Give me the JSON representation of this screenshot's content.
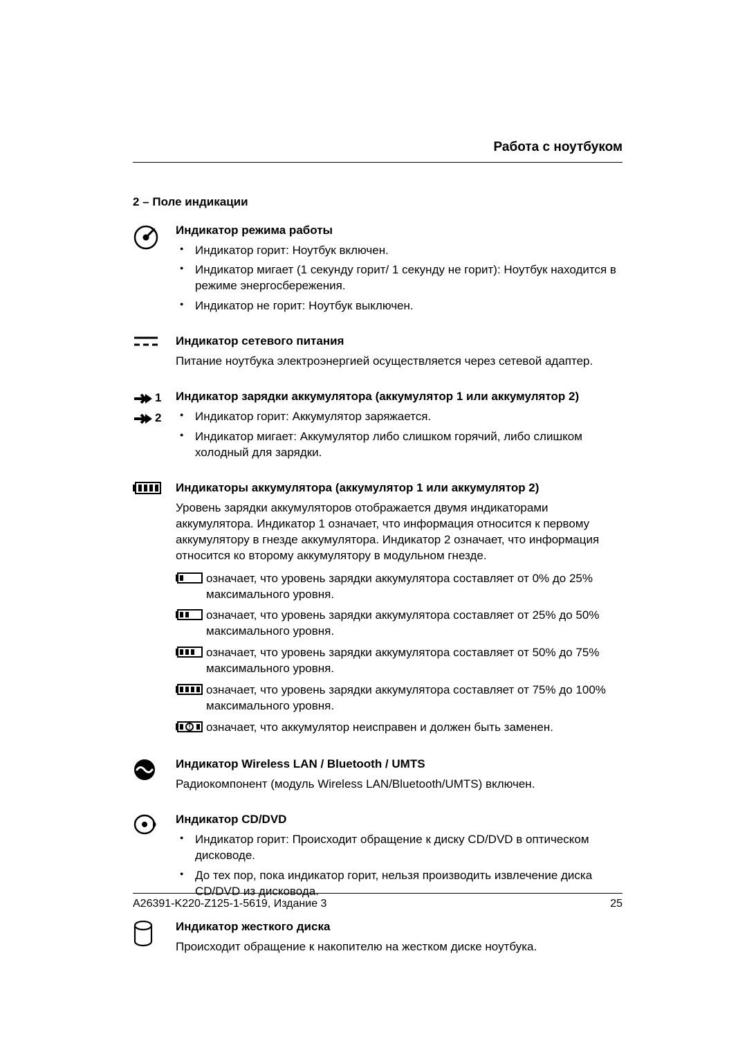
{
  "header": {
    "title": "Работа с ноутбуком"
  },
  "section_title": "2 – Поле индикации",
  "power_mode": {
    "heading": "Индикатор режима работы",
    "bullets": [
      "Индикатор горит: Ноутбук включен.",
      "Индикатор мигает (1 секунду горит/ 1 секунду не горит): Ноутбук находится в режиме энергосбережения.",
      "Индикатор не горит: Ноутбук выключен."
    ]
  },
  "mains": {
    "heading": "Индикатор сетевого питания",
    "text": "Питание ноутбука электроэнергией осуществляется через сетевой адаптер."
  },
  "charge": {
    "heading": "Индикатор зарядки аккумулятора (аккумулятор 1 или аккумулятор 2)",
    "bullets": [
      "Индикатор горит: Аккумулятор заряжается.",
      "Индикатор мигает: Аккумулятор либо слишком горячий, либо слишком холодный для зарядки."
    ],
    "arrow_labels": [
      "1",
      "2"
    ]
  },
  "battery": {
    "heading": "Индикаторы аккумулятора (аккумулятор 1 или аккумулятор 2)",
    "intro": "Уровень зарядки аккумуляторов отображается двумя индикаторами аккумулятора. Индикатор 1 означает, что информация относится к первому аккумулятору в гнезде аккумулятора. Индикатор 2 означает, что информация относится ко второму аккумулятору в модульном гнезде.",
    "levels": [
      {
        "bars": 1,
        "text": "означает, что уровень зарядки аккумулятора составляет от 0% до 25% максимального уровня."
      },
      {
        "bars": 2,
        "text": "означает, что уровень зарядки аккумулятора составляет от 25% до 50% максимального уровня."
      },
      {
        "bars": 3,
        "text": "означает, что уровень зарядки аккумулятора составляет от 50% до 75% максимального уровня."
      },
      {
        "bars": 4,
        "text": "означает, что уровень зарядки аккумулятора составляет от 75% до 100% максимального уровня."
      }
    ],
    "fault_text": "означает, что аккумулятор неисправен и должен быть заменен."
  },
  "wireless": {
    "heading": "Индикатор Wireless LAN / Bluetooth / UMTS",
    "text": "Радиокомпонент (модуль Wireless LAN/Bluetooth/UMTS) включен."
  },
  "cd": {
    "heading": "Индикатор CD/DVD",
    "bullets": [
      "Индикатор горит: Происходит обращение к диску CD/DVD в оптическом дисководе.",
      "До тех пор, пока индикатор горит, нельзя производить извлечение диска CD/DVD из дисковода."
    ]
  },
  "hdd": {
    "heading": "Индикатор жесткого диска",
    "text": "Происходит обращение к накопителю на жестком диске ноутбука."
  },
  "footer": {
    "doc_id": "A26391-K220-Z125-1-5619, Издание 3",
    "page_num": "25"
  },
  "colors": {
    "text": "#000000",
    "background": "#ffffff",
    "rule": "#000000"
  }
}
